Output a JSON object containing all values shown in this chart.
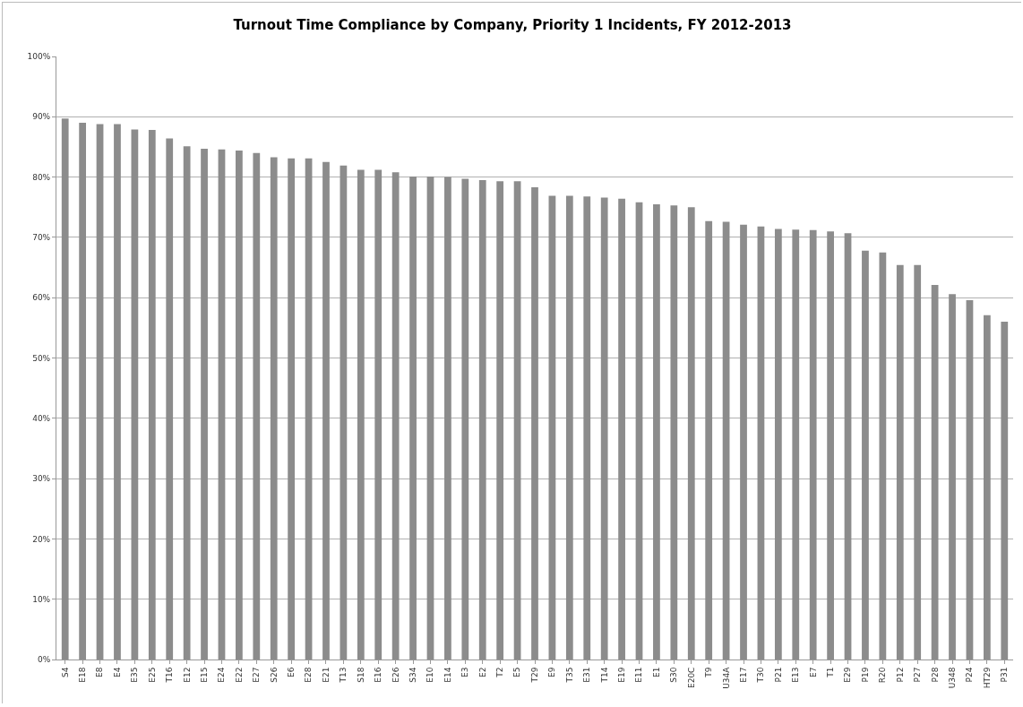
{
  "chart_data": {
    "type": "bar",
    "title": "Turnout Time Compliance by Company, Priority 1 Incidents, FY 2012-2013",
    "categories": [
      "S4",
      "E18",
      "E8",
      "E4",
      "E35",
      "E25",
      "T16",
      "E12",
      "E15",
      "E24",
      "E22",
      "E27",
      "S26",
      "E6",
      "E28",
      "E21",
      "T13",
      "S18",
      "E16",
      "E26",
      "S34",
      "E10",
      "E14",
      "E3",
      "E2",
      "T2",
      "E5",
      "T29",
      "E9",
      "T35",
      "E31",
      "T14",
      "E19",
      "E11",
      "E1",
      "S30",
      "E20C",
      "T9",
      "U34A",
      "E17",
      "T30",
      "P21",
      "E13",
      "E7",
      "T1",
      "E29",
      "P19",
      "R20",
      "P12",
      "P27",
      "P28",
      "U348",
      "P24",
      "HT29",
      "P31"
    ],
    "values": [
      89.7,
      89.0,
      88.8,
      88.8,
      87.9,
      87.8,
      86.4,
      85.1,
      84.7,
      84.6,
      84.4,
      84.0,
      83.3,
      83.1,
      83.1,
      82.5,
      81.9,
      81.2,
      81.2,
      80.8,
      80.1,
      80.1,
      80.0,
      79.7,
      79.5,
      79.3,
      79.3,
      78.3,
      76.9,
      76.9,
      76.8,
      76.6,
      76.4,
      75.8,
      75.5,
      75.3,
      75.0,
      72.7,
      72.6,
      72.1,
      71.8,
      71.4,
      71.3,
      71.2,
      71.0,
      70.7,
      67.8,
      67.5,
      65.4,
      65.4,
      62.1,
      60.6,
      59.6,
      57.1,
      56.0
    ],
    "color": "#8c8c8c",
    "ylim": [
      0,
      100
    ],
    "yticks": [
      {
        "value": 0,
        "label": "0%"
      },
      {
        "value": 10,
        "label": "10%"
      },
      {
        "value": 20,
        "label": "20%"
      },
      {
        "value": 30,
        "label": "30%"
      },
      {
        "value": 40,
        "label": "40%"
      },
      {
        "value": 50,
        "label": "50%"
      },
      {
        "value": 60,
        "label": "60%"
      },
      {
        "value": 70,
        "label": "70%"
      },
      {
        "value": 80,
        "label": "80%"
      },
      {
        "value": 90,
        "label": "90%"
      },
      {
        "value": 100,
        "label": "100%"
      }
    ],
    "grid": "y",
    "legend": false
  }
}
